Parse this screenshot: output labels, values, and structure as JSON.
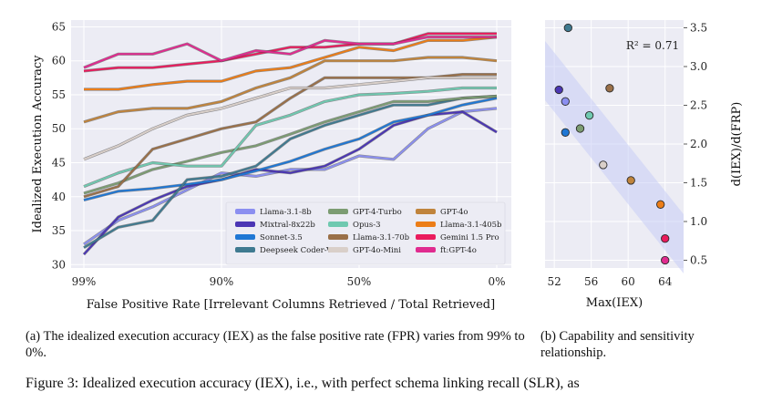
{
  "chart_data": [
    {
      "type": "line",
      "panel": "a",
      "xlabel": "False Positive Rate [Irrelevant Columns Retrieved / Total Retrieved]",
      "ylabel": "Idealized Execution Accuracy",
      "x_tick_labels": [
        "99%",
        "90%",
        "50%",
        "0%"
      ],
      "y_ticks": [
        30,
        35,
        40,
        45,
        50,
        55,
        60,
        65
      ],
      "ylim": [
        29.5,
        66
      ],
      "x_points": 13,
      "grid": true,
      "legend_position": "lower-right",
      "series": [
        {
          "name": "Llama-3.1-8b",
          "color": "#8b8ff0",
          "values": [
            33,
            36.5,
            38.5,
            41,
            43.5,
            43,
            44,
            44,
            46,
            45.5,
            50,
            52.5,
            53
          ]
        },
        {
          "name": "Mixtral-8x22b",
          "color": "#4b36b4",
          "values": [
            31.5,
            37,
            39.5,
            41.5,
            42.5,
            44,
            43.5,
            44.5,
            47,
            50.5,
            52,
            52.5,
            49.5
          ]
        },
        {
          "name": "Sonnet-3.5",
          "color": "#1f77d4",
          "values": [
            39.5,
            40.8,
            41.2,
            41.8,
            42.5,
            43.8,
            45.2,
            47,
            48.5,
            51,
            52,
            53.5,
            54.5
          ]
        },
        {
          "name": "Deepseek Coder-V2",
          "color": "#3f7a90",
          "values": [
            32.5,
            35.5,
            36.5,
            42.5,
            43,
            44.5,
            48.5,
            50.5,
            52,
            53.5,
            53.5,
            54.5,
            54.8
          ]
        },
        {
          "name": "GPT-4-Turbo",
          "color": "#7c9c72",
          "values": [
            40.5,
            42,
            44,
            45.2,
            46.5,
            47.5,
            49.2,
            51,
            52.5,
            54,
            54,
            54.5,
            54.8
          ]
        },
        {
          "name": "Opus-3",
          "color": "#6fc9b0",
          "values": [
            41.5,
            43.5,
            45,
            44.5,
            44.5,
            50.5,
            52,
            54,
            55,
            55.2,
            55.5,
            56,
            56
          ]
        },
        {
          "name": "Llama-3.1-70b",
          "color": "#9a7048",
          "values": [
            40,
            41.5,
            47,
            48.5,
            50,
            51,
            54.5,
            57.5,
            57.5,
            57.5,
            57.5,
            58,
            58
          ]
        },
        {
          "name": "GPT-4o-Mini",
          "color": "#d9cfc9",
          "values": [
            45.5,
            47.5,
            50,
            52,
            53,
            54.5,
            56,
            56,
            56.5,
            57,
            57.5,
            57.5,
            57.5
          ]
        },
        {
          "name": "GPT-4o",
          "color": "#c0843c",
          "values": [
            51,
            52.5,
            53,
            53,
            54,
            56,
            57.5,
            60,
            60,
            60,
            60.5,
            60.5,
            60
          ]
        },
        {
          "name": "Llama-3.1-405b",
          "color": "#ec7d17",
          "values": [
            55.8,
            55.8,
            56.5,
            57,
            57,
            58.5,
            59,
            60.5,
            62,
            61.5,
            63,
            63,
            63.5
          ]
        },
        {
          "name": "Gemini 1.5 Pro",
          "color": "#ea1b5d",
          "values": [
            58.5,
            59,
            59,
            59.5,
            60,
            61,
            62,
            62,
            62.5,
            62.5,
            64,
            64,
            64
          ]
        },
        {
          "name": "ft:GPT-4o",
          "color": "#e02b8f",
          "values": [
            59,
            61,
            61,
            62.5,
            60,
            61.5,
            61,
            63,
            62.5,
            62.5,
            63.5,
            63.5,
            63.5
          ]
        }
      ]
    },
    {
      "type": "scatter",
      "panel": "b",
      "xlabel": "Max(IEX)",
      "ylabel": "d(IEX)/d(FRP)",
      "annotation": "R² = 0.71",
      "x_ticks": [
        52,
        56,
        60,
        64
      ],
      "y_ticks": [
        0.5,
        1.0,
        1.5,
        2.0,
        2.5,
        3.0,
        3.5
      ],
      "xlim": [
        51,
        66
      ],
      "ylim": [
        0.4,
        3.6
      ],
      "points": [
        {
          "x": 53.5,
          "y": 3.5,
          "color": "#3f7a90"
        },
        {
          "x": 52.5,
          "y": 2.7,
          "color": "#4b36b4"
        },
        {
          "x": 53.2,
          "y": 2.55,
          "color": "#8b8ff0"
        },
        {
          "x": 58.0,
          "y": 2.72,
          "color": "#9a7048"
        },
        {
          "x": 55.8,
          "y": 2.37,
          "color": "#6fc9b0"
        },
        {
          "x": 54.8,
          "y": 2.2,
          "color": "#7c9c72"
        },
        {
          "x": 53.2,
          "y": 2.15,
          "color": "#1f77d4"
        },
        {
          "x": 57.3,
          "y": 1.73,
          "color": "#d9cfc9"
        },
        {
          "x": 60.3,
          "y": 1.53,
          "color": "#c0843c"
        },
        {
          "x": 63.5,
          "y": 1.22,
          "color": "#ec7d17"
        },
        {
          "x": 64.0,
          "y": 0.78,
          "color": "#ea1b5d"
        },
        {
          "x": 64.0,
          "y": 0.5,
          "color": "#e02b8f"
        }
      ]
    }
  ],
  "captions": {
    "a": "(a) The idealized execution accuracy (IEX) as the false positive rate (FPR) varies from 99% to 0%.",
    "b": "(b) Capability and sensitivity relationship.",
    "figure": "Figure 3: Idealized execution accuracy (IEX), i.e., with perfect schema linking recall (SLR), as"
  }
}
